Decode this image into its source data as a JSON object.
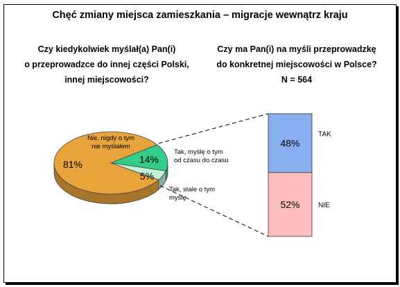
{
  "title": "Chęć zmiany miejsca zamieszkania – migracje wewnątrz kraju",
  "question_left": [
    "Czy kiedykolwiek myślał(a) Pan(i)",
    "o przeprowadzce do innej części Polski,",
    "innej miejscowości?"
  ],
  "question_right": [
    "Czy ma Pan(i) na myśli przeprowadzkę",
    "do konkretnej miejscowości w Polsce?",
    "N = 564"
  ],
  "colors": {
    "never": "#e8a43a",
    "sometimes": "#33cc88",
    "constantly": "#bff2d8",
    "tak": "#89aef0",
    "nie": "#ffbcbc"
  },
  "chart_data": [
    {
      "type": "pie",
      "slices": [
        {
          "key": "never",
          "label": "Nie, nigdy o tym nie myślałem",
          "label_lines": [
            "Nie, nigdy o tym",
            "nie myślałem"
          ],
          "value": 81,
          "value_label": "81%"
        },
        {
          "key": "sometimes",
          "label": "Tak, myślę o tym od czasu do czasu",
          "label_lines": [
            "Tak, myślę o tym",
            "od czasu do czasu"
          ],
          "value": 14,
          "value_label": "14%"
        },
        {
          "key": "constantly",
          "label": "Tak, stale o tym myślę",
          "label_lines": [
            "Tak, stale o tym",
            "myślę"
          ],
          "value": 5,
          "value_label": "5%"
        }
      ]
    },
    {
      "type": "bar",
      "stacked": true,
      "categories": [
        "TAK",
        "NIE"
      ],
      "values": [
        48,
        52
      ],
      "value_labels": [
        "48%",
        "52%"
      ],
      "title": "",
      "xlabel": "",
      "ylabel": ""
    }
  ]
}
